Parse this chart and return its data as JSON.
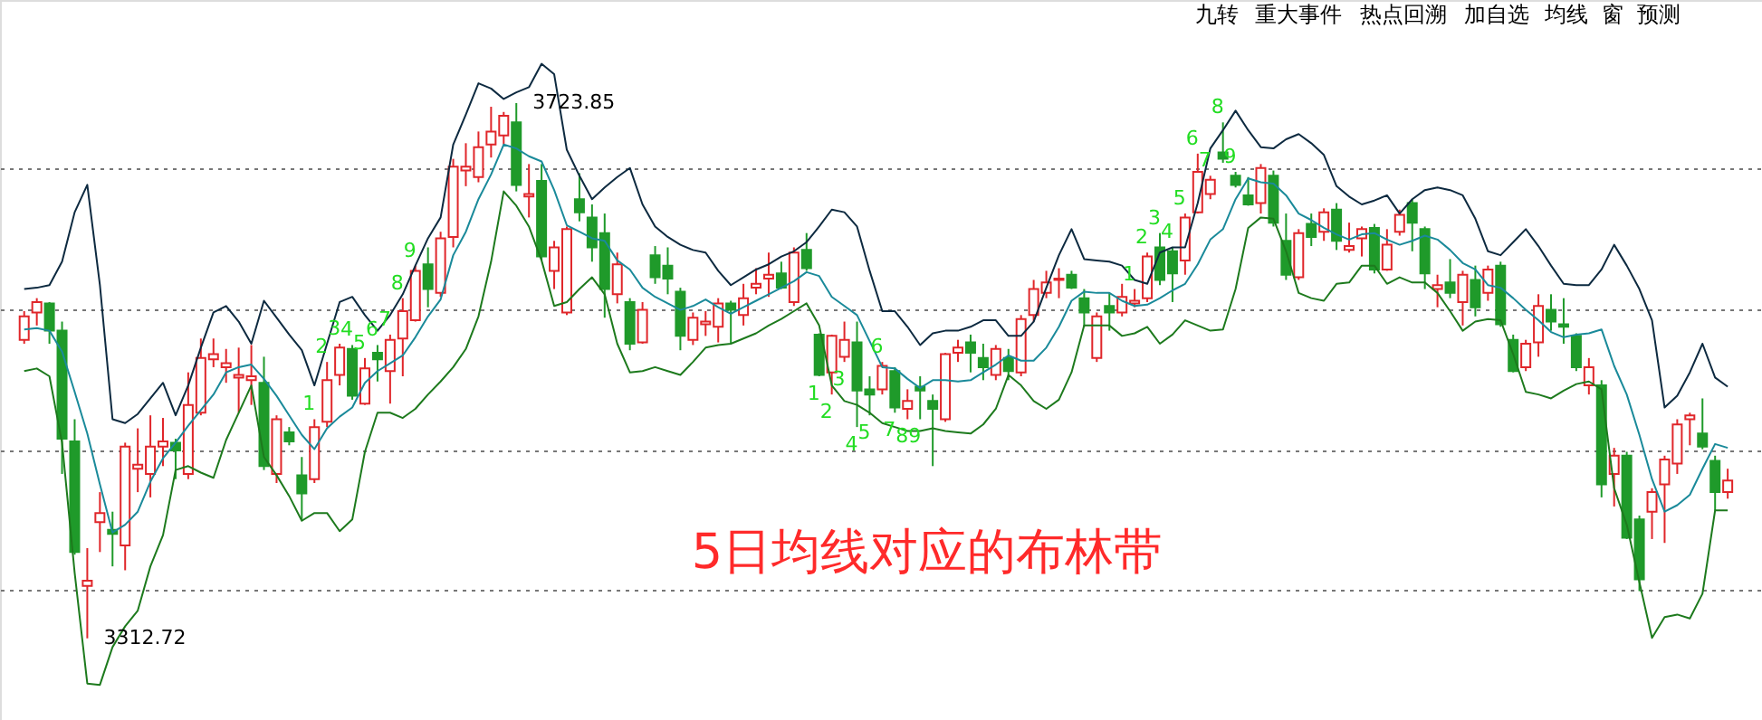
{
  "chart_data": {
    "type": "candlestick",
    "title": "5日均线对应的布林带",
    "categories": [
      null,
      null,
      null,
      null,
      null,
      null,
      null,
      null,
      null,
      null,
      null,
      null,
      null,
      null,
      null,
      null,
      null,
      null,
      null,
      null,
      null,
      null,
      null,
      null,
      null,
      null,
      null,
      null,
      null,
      null,
      null,
      null,
      null,
      null,
      null,
      null,
      null,
      null,
      null,
      null,
      null,
      null,
      null,
      null,
      null,
      null,
      null,
      null,
      null,
      null,
      null,
      null,
      null,
      null,
      null,
      null,
      null,
      null,
      null,
      null,
      null,
      null,
      null,
      null,
      null,
      null,
      null,
      null,
      null,
      null,
      null,
      null,
      null,
      null,
      null,
      null,
      null,
      null,
      null,
      null,
      null,
      null,
      null,
      null,
      null,
      null,
      null,
      null,
      null,
      null,
      null,
      null,
      null,
      null,
      null,
      null,
      null,
      null,
      null,
      null,
      null,
      null,
      null,
      null,
      null,
      null,
      null,
      null,
      null,
      null,
      null,
      null,
      null,
      null,
      null,
      null,
      null,
      null,
      null,
      null,
      null,
      null,
      null,
      null,
      null,
      null,
      null,
      null,
      null,
      null,
      null,
      null,
      null,
      null,
      null,
      null
    ],
    "ohlc": [
      [
        3542,
        3564,
        3539,
        3560
      ],
      [
        3563,
        3574,
        3553,
        3571
      ],
      [
        3570,
        3571,
        3539,
        3549
      ],
      [
        3549,
        3556,
        3439,
        3466
      ],
      [
        3464,
        3481,
        3377,
        3379
      ],
      [
        3353,
        3382,
        3312.72,
        3357
      ],
      [
        3402,
        3425,
        3379,
        3409
      ],
      [
        3396,
        3410,
        3368,
        3393
      ],
      [
        3384,
        3463,
        3365,
        3460
      ],
      [
        3443,
        3474,
        3425,
        3446
      ],
      [
        3439,
        3484,
        3421,
        3460
      ],
      [
        3460,
        3482,
        3445,
        3464
      ],
      [
        3463,
        3466,
        3435,
        3457
      ],
      [
        3439,
        3517,
        3435,
        3492
      ],
      [
        3486,
        3543,
        3484,
        3528
      ],
      [
        3527,
        3543,
        3521,
        3531
      ],
      [
        3521,
        3535,
        3509,
        3524
      ],
      [
        3513,
        3536,
        3486,
        3515
      ],
      [
        3511,
        3538,
        3492,
        3514
      ],
      [
        3509,
        3529,
        3442,
        3445
      ],
      [
        3439,
        3484,
        3432,
        3481
      ],
      [
        3471,
        3475,
        3461,
        3464
      ],
      [
        3438,
        3452,
        3404,
        3424
      ],
      [
        3435,
        3481,
        3432,
        3475
      ],
      [
        3479,
        3525,
        3475,
        3511
      ],
      [
        3515,
        3539,
        3507,
        3536
      ],
      [
        3535,
        3538,
        3496,
        3499
      ],
      [
        3493,
        3528,
        3492,
        3520
      ],
      [
        3532,
        3538,
        3510,
        3527
      ],
      [
        3518,
        3546,
        3493,
        3542
      ],
      [
        3543,
        3574,
        3514,
        3564
      ],
      [
        3557,
        3599,
        3556,
        3595
      ],
      [
        3600,
        3613,
        3567,
        3581
      ],
      [
        3578,
        3625,
        3575,
        3620
      ],
      [
        3621,
        3681,
        3613,
        3675
      ],
      [
        3672,
        3693,
        3660,
        3675
      ],
      [
        3667,
        3702,
        3663,
        3690
      ],
      [
        3692,
        3721,
        3682,
        3702
      ],
      [
        3699,
        3717,
        3692,
        3714
      ],
      [
        3709,
        3723.85,
        3656,
        3661
      ],
      [
        3652,
        3677,
        3636,
        3654
      ],
      [
        3664,
        3677,
        3603,
        3606
      ],
      [
        3595,
        3618,
        3581,
        3613
      ],
      [
        3563,
        3629,
        3561,
        3627
      ],
      [
        3650,
        3670,
        3633,
        3640
      ],
      [
        3636,
        3646,
        3602,
        3613
      ],
      [
        3624,
        3639,
        3559,
        3581
      ],
      [
        3577,
        3609,
        3570,
        3600
      ],
      [
        3571,
        3574,
        3534,
        3539
      ],
      [
        3540,
        3571,
        3539,
        3565
      ],
      [
        3607,
        3614,
        3585,
        3590
      ],
      [
        3599,
        3613,
        3577,
        3589
      ],
      [
        3579,
        3582,
        3534,
        3545
      ],
      [
        3542,
        3563,
        3538,
        3559
      ],
      [
        3554,
        3564,
        3545,
        3556
      ],
      [
        3552,
        3574,
        3540,
        3570
      ],
      [
        3570,
        3572,
        3539,
        3565
      ],
      [
        3561,
        3585,
        3553,
        3574
      ],
      [
        3582,
        3597,
        3577,
        3585
      ],
      [
        3589,
        3609,
        3575,
        3592
      ],
      [
        3593,
        3602,
        3581,
        3582
      ],
      [
        3571,
        3613,
        3568,
        3609
      ],
      [
        3611,
        3624,
        3595,
        3597
      ],
      [
        3546,
        3547,
        3514,
        3515
      ],
      [
        3517,
        3546,
        3500,
        3545
      ],
      [
        3529,
        3556,
        3525,
        3542
      ],
      [
        3540,
        3556,
        3475,
        3503
      ],
      [
        3504,
        3514,
        3484,
        3500
      ],
      [
        3504,
        3525,
        3500,
        3522
      ],
      [
        3518,
        3521,
        3486,
        3490
      ],
      [
        3489,
        3504,
        3481,
        3495
      ],
      [
        3506,
        3514,
        3481,
        3503
      ],
      [
        3495,
        3500,
        3445,
        3489
      ],
      [
        3481,
        3532,
        3479,
        3531
      ],
      [
        3532,
        3542,
        3525,
        3536
      ],
      [
        3540,
        3546,
        3517,
        3532
      ],
      [
        3528,
        3539,
        3511,
        3521
      ],
      [
        3515,
        3538,
        3511,
        3535
      ],
      [
        3528,
        3535,
        3511,
        3518
      ],
      [
        3517,
        3561,
        3514,
        3558
      ],
      [
        3561,
        3588,
        3556,
        3581
      ],
      [
        3578,
        3595,
        3574,
        3586
      ],
      [
        3588,
        3597,
        3574,
        3589
      ],
      [
        3592,
        3595,
        3581,
        3582
      ],
      [
        3574,
        3581,
        3552,
        3563
      ],
      [
        3528,
        3563,
        3525,
        3560
      ],
      [
        3568,
        3578,
        3549,
        3563
      ],
      [
        3563,
        3585,
        3560,
        3575
      ],
      [
        3570,
        3581,
        3567,
        3572
      ],
      [
        3574,
        3609,
        3571,
        3606
      ],
      [
        3613,
        3624,
        3584,
        3588
      ],
      [
        3610,
        3613,
        3571,
        3593
      ],
      [
        3603,
        3639,
        3592,
        3636
      ],
      [
        3640,
        3685,
        3639,
        3671
      ],
      [
        3654,
        3668,
        3650,
        3665
      ],
      [
        3686,
        3709,
        3678,
        3681
      ],
      [
        3668,
        3671,
        3659,
        3661
      ],
      [
        3653,
        3667,
        3645,
        3646
      ],
      [
        3647,
        3677,
        3639,
        3674
      ],
      [
        3668,
        3672,
        3629,
        3632
      ],
      [
        3618,
        3639,
        3588,
        3592
      ],
      [
        3590,
        3627,
        3588,
        3624
      ],
      [
        3631,
        3639,
        3614,
        3621
      ],
      [
        3625,
        3643,
        3618,
        3640
      ],
      [
        3642,
        3647,
        3611,
        3618
      ],
      [
        3611,
        3632,
        3609,
        3614
      ],
      [
        3620,
        3629,
        3606,
        3627
      ],
      [
        3628,
        3631,
        3593,
        3596
      ],
      [
        3596,
        3627,
        3595,
        3615
      ],
      [
        3625,
        3642,
        3622,
        3638
      ],
      [
        3647,
        3650,
        3610,
        3632
      ],
      [
        3627,
        3629,
        3581,
        3593
      ],
      [
        3581,
        3592,
        3567,
        3584
      ],
      [
        3586,
        3604,
        3574,
        3578
      ],
      [
        3571,
        3595,
        3553,
        3592
      ],
      [
        3588,
        3599,
        3560,
        3567
      ],
      [
        3578,
        3599,
        3572,
        3596
      ],
      [
        3599,
        3602,
        3552,
        3554
      ],
      [
        3542,
        3546,
        3517,
        3518
      ],
      [
        3521,
        3542,
        3518,
        3539
      ],
      [
        3540,
        3577,
        3529,
        3568
      ],
      [
        3565,
        3577,
        3549,
        3556
      ],
      [
        3554,
        3574,
        3539,
        3552
      ],
      [
        3545,
        3547,
        3518,
        3521
      ],
      [
        3507,
        3528,
        3500,
        3521
      ],
      [
        3507,
        3511,
        3421,
        3431
      ],
      [
        3439,
        3459,
        3414,
        3453
      ],
      [
        3453,
        3456,
        3389,
        3390
      ],
      [
        3404,
        3407,
        3349,
        3358
      ],
      [
        3410,
        3428,
        3389,
        3425
      ],
      [
        3431,
        3453,
        3386,
        3450
      ],
      [
        3447,
        3481,
        3439,
        3477
      ],
      [
        3481,
        3486,
        3461,
        3484
      ],
      [
        3470,
        3497,
        3458,
        3460
      ],
      [
        3449,
        3453,
        3411,
        3425
      ],
      [
        3425,
        3443,
        3420,
        3434
      ]
    ],
    "colors": [
      "#e0262a",
      "#e0262a",
      "#1f9a2a",
      "#1f9a2a",
      "#1f9a2a",
      "#e0262a",
      "#e0262a",
      "#1f9a2a",
      "#e0262a",
      "#e0262a",
      "#e0262a",
      "#e0262a",
      "#1f9a2a",
      "#e0262a",
      "#e0262a",
      "#e0262a",
      "#e0262a",
      "#e0262a",
      "#e0262a",
      "#1f9a2a",
      "#e0262a",
      "#1f9a2a",
      "#1f9a2a",
      "#e0262a",
      "#e0262a",
      "#e0262a",
      "#1f9a2a",
      "#e0262a",
      "#1f9a2a",
      "#e0262a",
      "#e0262a",
      "#e0262a",
      "#1f9a2a",
      "#e0262a",
      "#e0262a",
      "#e0262a",
      "#e0262a",
      "#e0262a",
      "#e0262a",
      "#1f9a2a",
      "#e0262a",
      "#1f9a2a",
      "#e0262a",
      "#e0262a",
      "#1f9a2a",
      "#1f9a2a",
      "#1f9a2a",
      "#e0262a",
      "#1f9a2a",
      "#e0262a",
      "#1f9a2a",
      "#1f9a2a",
      "#1f9a2a",
      "#e0262a",
      "#e0262a",
      "#e0262a",
      "#1f9a2a",
      "#e0262a",
      "#e0262a",
      "#e0262a",
      "#1f9a2a",
      "#e0262a",
      "#1f9a2a",
      "#1f9a2a",
      "#e0262a",
      "#e0262a",
      "#1f9a2a",
      "#1f9a2a",
      "#e0262a",
      "#1f9a2a",
      "#e0262a",
      "#1f9a2a",
      "#1f9a2a",
      "#e0262a",
      "#e0262a",
      "#1f9a2a",
      "#1f9a2a",
      "#e0262a",
      "#1f9a2a",
      "#e0262a",
      "#e0262a",
      "#e0262a",
      "#e0262a",
      "#1f9a2a",
      "#1f9a2a",
      "#e0262a",
      "#1f9a2a",
      "#e0262a",
      "#e0262a",
      "#e0262a",
      "#1f9a2a",
      "#1f9a2a",
      "#e0262a",
      "#e0262a",
      "#e0262a",
      "#1f9a2a",
      "#1f9a2a",
      "#1f9a2a",
      "#e0262a",
      "#1f9a2a",
      "#1f9a2a",
      "#e0262a",
      "#1f9a2a",
      "#e0262a",
      "#1f9a2a",
      "#e0262a",
      "#e0262a",
      "#1f9a2a",
      "#e0262a",
      "#e0262a",
      "#1f9a2a",
      "#1f9a2a",
      "#e0262a",
      "#1f9a2a",
      "#e0262a",
      "#1f9a2a",
      "#e0262a",
      "#1f9a2a",
      "#1f9a2a",
      "#e0262a",
      "#e0262a",
      "#1f9a2a",
      "#1f9a2a",
      "#1f9a2a",
      "#e0262a",
      "#1f9a2a",
      "#e0262a",
      "#1f9a2a",
      "#1f9a2a",
      "#e0262a",
      "#e0262a",
      "#e0262a",
      "#e0262a",
      "#1f9a2a",
      "#1f9a2a",
      "#e0262a"
    ],
    "series": [
      {
        "type": "line",
        "color": "#0d2a40",
        "values": [
          3581,
          3582,
          3584,
          3602,
          3640,
          3661,
          3584,
          3481,
          3478,
          3485,
          3497,
          3509,
          3484,
          3507,
          3536,
          3563,
          3568,
          3556,
          3539,
          3572,
          3559,
          3546,
          3534,
          3507,
          3539,
          3571,
          3575,
          3561,
          3549,
          3561,
          3577,
          3599,
          3620,
          3636,
          3692,
          3715,
          3739,
          3735,
          3727,
          3732,
          3736,
          3754,
          3746,
          3688,
          3668,
          3650,
          3659,
          3667,
          3674,
          3646,
          3629,
          3621,
          3615,
          3611,
          3609,
          3595,
          3584,
          3590,
          3596,
          3600,
          3606,
          3610,
          3617,
          3629,
          3642,
          3640,
          3629,
          3595,
          3564,
          3564,
          3552,
          3538,
          3547,
          3549,
          3549,
          3552,
          3557,
          3557,
          3545,
          3545,
          3556,
          3582,
          3607,
          3627,
          3604,
          3603,
          3602,
          3599,
          3588,
          3585,
          3609,
          3613,
          3613,
          3647,
          3689,
          3703,
          3718,
          3703,
          3690,
          3689,
          3696,
          3700,
          3693,
          3684,
          3660,
          3652,
          3646,
          3649,
          3653,
          3639,
          3650,
          3657,
          3659,
          3657,
          3653,
          3635,
          3610,
          3607,
          3617,
          3627,
          3614,
          3599,
          3585,
          3584,
          3584,
          3596,
          3615,
          3599,
          3581,
          3557,
          3490,
          3499,
          3517,
          3539,
          3513,
          3506
        ]
      },
      {
        "type": "line",
        "color": "#1a8a9a",
        "values": [
          3550,
          3551,
          3549,
          3533,
          3502,
          3470,
          3431,
          3394,
          3400,
          3410,
          3433,
          3451,
          3463,
          3476,
          3488,
          3500,
          3517,
          3521,
          3523,
          3512,
          3499,
          3484,
          3469,
          3458,
          3474,
          3483,
          3490,
          3509,
          3518,
          3524,
          3530,
          3544,
          3560,
          3573,
          3607,
          3625,
          3650,
          3669,
          3692,
          3689,
          3683,
          3679,
          3657,
          3630,
          3625,
          3620,
          3618,
          3603,
          3596,
          3582,
          3575,
          3570,
          3565,
          3568,
          3573,
          3567,
          3562,
          3567,
          3572,
          3577,
          3582,
          3587,
          3594,
          3591,
          3575,
          3568,
          3561,
          3541,
          3521,
          3520,
          3512,
          3505,
          3511,
          3511,
          3510,
          3511,
          3517,
          3523,
          3530,
          3526,
          3526,
          3536,
          3552,
          3572,
          3579,
          3578,
          3578,
          3572,
          3568,
          3569,
          3574,
          3580,
          3585,
          3600,
          3619,
          3627,
          3650,
          3666,
          3663,
          3662,
          3653,
          3639,
          3634,
          3628,
          3623,
          3619,
          3623,
          3624,
          3619,
          3615,
          3618,
          3622,
          3619,
          3611,
          3601,
          3596,
          3584,
          3582,
          3574,
          3565,
          3557,
          3548,
          3544,
          3546,
          3547,
          3550,
          3522,
          3500,
          3469,
          3435,
          3410,
          3415,
          3423,
          3443,
          3462,
          3459
        ]
      },
      {
        "type": "line",
        "color": "#1d7a1d",
        "values": [
          3518,
          3520,
          3514,
          3463,
          3363,
          3278,
          3277,
          3306,
          3322,
          3334,
          3368,
          3392,
          3442,
          3445,
          3440,
          3436,
          3465,
          3486,
          3507,
          3452,
          3438,
          3422,
          3403,
          3409,
          3409,
          3395,
          3404,
          3456,
          3486,
          3486,
          3482,
          3489,
          3500,
          3510,
          3521,
          3535,
          3560,
          3602,
          3656,
          3645,
          3629,
          3603,
          3568,
          3571,
          3581,
          3590,
          3577,
          3539,
          3517,
          3518,
          3521,
          3518,
          3515,
          3525,
          3536,
          3538,
          3539,
          3543,
          3547,
          3553,
          3558,
          3564,
          3570,
          3553,
          3507,
          3495,
          3492,
          3486,
          3478,
          3475,
          3472,
          3472,
          3474,
          3472,
          3471,
          3470,
          3477,
          3489,
          3515,
          3507,
          3495,
          3489,
          3496,
          3517,
          3553,
          3553,
          3553,
          3545,
          3547,
          3552,
          3539,
          3546,
          3557,
          3553,
          3549,
          3550,
          3581,
          3628,
          3636,
          3635,
          3610,
          3578,
          3574,
          3572,
          3585,
          3586,
          3599,
          3599,
          3585,
          3590,
          3586,
          3586,
          3578,
          3564,
          3549,
          3556,
          3558,
          3557,
          3531,
          3502,
          3500,
          3497,
          3503,
          3508,
          3510,
          3504,
          3428,
          3400,
          3356,
          3313,
          3329,
          3331,
          3328,
          3347,
          3411,
          3411
        ]
      }
    ],
    "value_labels": [
      null,
      null,
      null,
      null,
      null,
      null,
      null,
      null,
      null,
      null,
      null,
      null,
      null,
      null,
      null,
      null,
      null,
      null,
      null,
      null,
      null,
      null,
      null,
      "1",
      "2",
      "3",
      "4",
      "5",
      "6",
      "7",
      "8",
      "9",
      null,
      null,
      null,
      null,
      null,
      null,
      null,
      null,
      null,
      null,
      null,
      null,
      null,
      null,
      null,
      null,
      null,
      null,
      null,
      null,
      null,
      null,
      null,
      null,
      null,
      null,
      null,
      null,
      null,
      null,
      null,
      "1",
      "2",
      "3",
      "4",
      "5",
      "6",
      "7",
      "8",
      "9",
      null,
      null,
      null,
      null,
      null,
      null,
      null,
      null,
      null,
      null,
      null,
      null,
      null,
      null,
      null,
      null,
      "1",
      "2",
      "3",
      "4",
      "5",
      "6",
      "7",
      "8",
      "9",
      null,
      null,
      null,
      null,
      null,
      null,
      null,
      null,
      null,
      null,
      null,
      null,
      null,
      null,
      null,
      null,
      null,
      null,
      null,
      null,
      null,
      null,
      null,
      null,
      null,
      null,
      null,
      null,
      null,
      null,
      null,
      null,
      null,
      null,
      null,
      null,
      null,
      null,
      null
    ],
    "ylim": [
      3250,
      3803
    ],
    "yticks": [
      {
        "value": 3674,
        "label": null
      },
      {
        "value": 3565,
        "label": null
      },
      {
        "value": 3457,
        "label": null
      },
      {
        "value": 3350,
        "label": null
      }
    ],
    "grid": "y",
    "tick_labels": false,
    "annotations": [
      "3723.85",
      "3312.72",
      "九转",
      "重大事件",
      "热点回溯",
      "加自选",
      "均线",
      "窗",
      "预测"
    ]
  }
}
